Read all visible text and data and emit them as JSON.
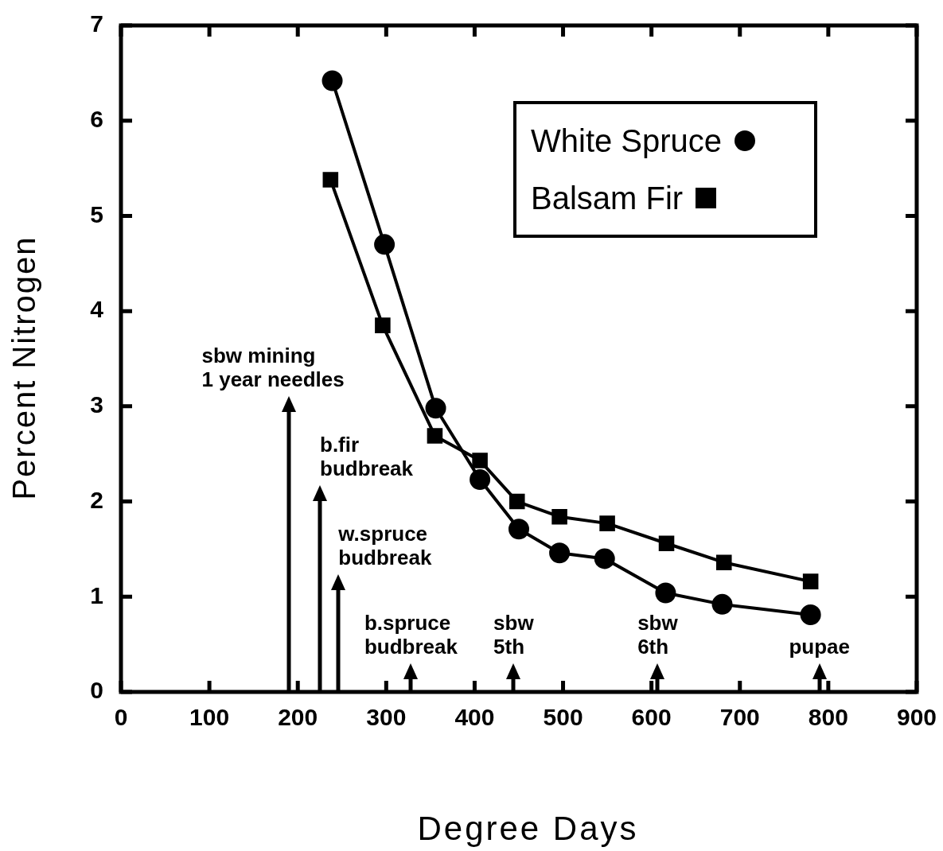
{
  "chart_data": {
    "type": "line",
    "xlabel": "Degree Days",
    "ylabel": "Percent Nitrogen",
    "xlim": [
      0,
      900
    ],
    "xticks": [
      0,
      100,
      200,
      300,
      400,
      500,
      600,
      700,
      800,
      900
    ],
    "ylim": [
      0,
      7
    ],
    "yticks": [
      0,
      1,
      2,
      3,
      4,
      5,
      6,
      7
    ],
    "grid": false,
    "legend": "top right",
    "line_style": "solid",
    "series": [
      {
        "name": "White Spruce",
        "color": "#000000",
        "marker": "circle",
        "x": [
          239,
          298,
          356,
          406,
          450,
          496,
          547,
          616,
          680,
          780
        ],
        "values": [
          6.42,
          4.7,
          2.98,
          2.23,
          1.71,
          1.46,
          1.4,
          1.04,
          0.92,
          0.81
        ]
      },
      {
        "name": "Balsam Fir",
        "color": "#000000",
        "marker": "square",
        "x": [
          237,
          296,
          355,
          406,
          448,
          496,
          550,
          617,
          682,
          780
        ],
        "values": [
          5.38,
          3.85,
          2.69,
          2.43,
          2.0,
          1.84,
          1.77,
          1.56,
          1.36,
          1.16
        ]
      }
    ],
    "ref_lines": [
      {
        "axis": "x",
        "value": 190,
        "label": "sbw mining\n1 year needles"
      },
      {
        "axis": "x",
        "value": 225,
        "label": "b.fir\nbudbreak"
      },
      {
        "axis": "x",
        "value": 246,
        "label": "w.spruce\nbudbreak"
      },
      {
        "axis": "x",
        "value": 328,
        "label": "b.spruce\nbudbreak"
      },
      {
        "axis": "x",
        "value": 444,
        "label": "sbw\n5th"
      },
      {
        "axis": "x",
        "value": 607,
        "label": "sbw\n6th"
      },
      {
        "axis": "x",
        "value": 790,
        "label": "pupae"
      }
    ]
  }
}
